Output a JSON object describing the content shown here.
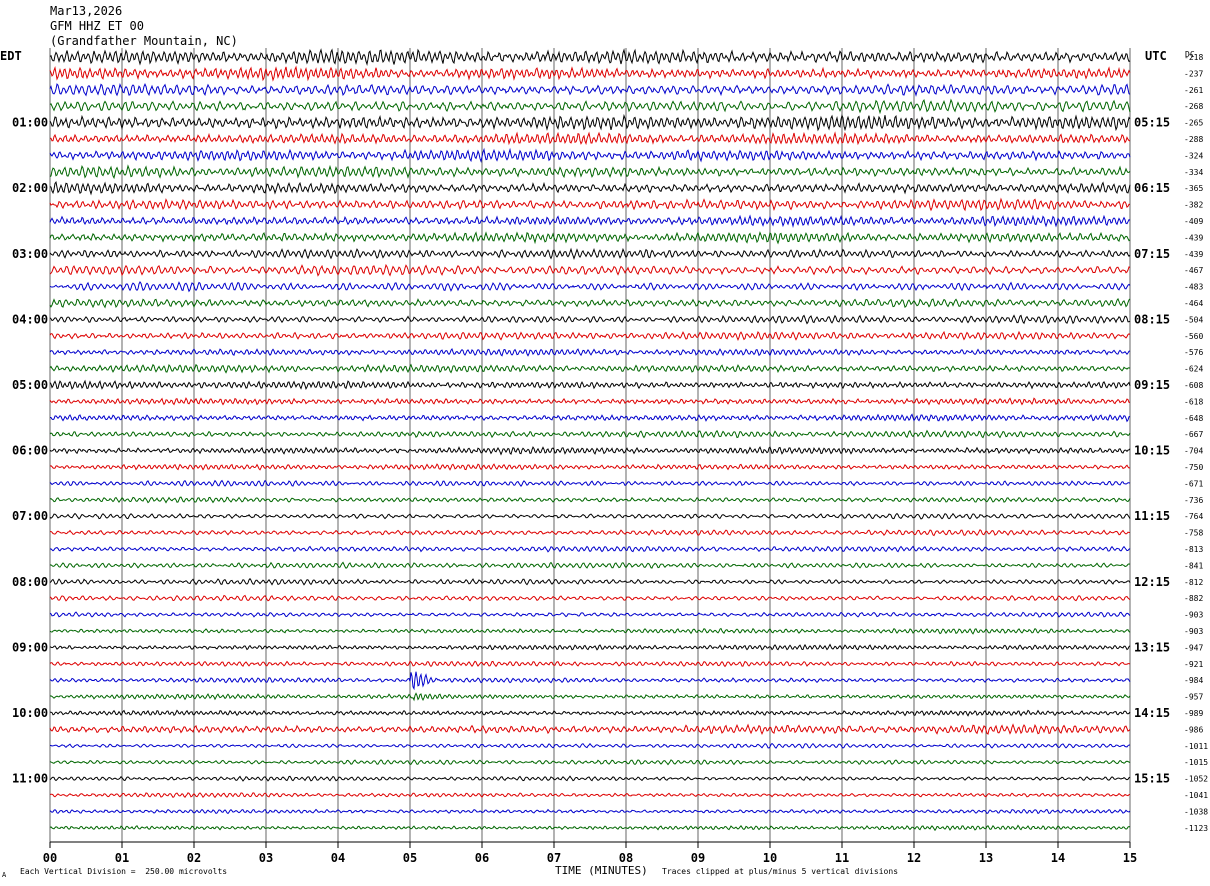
{
  "header": {
    "date": "Mar13,2026",
    "station": "GFM HHZ ET 00",
    "location": "(Grandfather Mountain, NC)"
  },
  "labels": {
    "left_zone": "EDT",
    "right_zone": "UTC",
    "dc_header": "DC",
    "corner_mark": "A",
    "scale_note": "Each Vertical Division =  250.00 microvolts",
    "clip_note": "Traces clipped at plus/minus 5 vertical divisions"
  },
  "colors": {
    "traces": [
      "#000000",
      "#dd0000",
      "#0000cc",
      "#006600"
    ],
    "grid": "#000000"
  },
  "chart_data": {
    "type": "line",
    "title": "",
    "xlabel": "TIME (MINUTES)",
    "ylabel": "",
    "xlim": [
      0,
      15
    ],
    "x_ticks": [
      "00",
      "01",
      "02",
      "03",
      "04",
      "05",
      "06",
      "07",
      "08",
      "09",
      "10",
      "11",
      "12",
      "13",
      "14",
      "15"
    ],
    "rows_per_hour": 4,
    "row_count": 48,
    "left_hour_labels": [
      "01:00",
      "02:00",
      "03:00",
      "04:00",
      "05:00",
      "06:00",
      "07:00",
      "08:00",
      "09:00",
      "10:00",
      "11:00"
    ],
    "right_hour_labels": [
      "05:15",
      "06:15",
      "07:15",
      "08:15",
      "09:15",
      "10:15",
      "11:15",
      "12:15",
      "13:15",
      "14:15",
      "15:15"
    ],
    "dc_offsets": [
      -218,
      -237,
      -261,
      -268,
      -265,
      -288,
      -324,
      -334,
      -365,
      -382,
      -409,
      -439,
      -439,
      -467,
      -483,
      -464,
      -504,
      -560,
      -576,
      -624,
      -608,
      -618,
      -648,
      -667,
      -704,
      -750,
      -671,
      -736,
      -764,
      -758,
      -813,
      -841,
      -812,
      -882,
      -903,
      -903,
      -947,
      -921,
      -984,
      -957,
      -989,
      -986,
      -1011,
      -1015,
      -1052,
      -1041,
      -1038,
      -1123
    ],
    "trace_amplitude_divisions": [
      2.6,
      2.2,
      2.2,
      2.2,
      2.6,
      2.0,
      2.0,
      2.0,
      2.0,
      2.0,
      1.8,
      1.8,
      1.6,
      1.8,
      1.6,
      1.6,
      1.4,
      1.4,
      1.2,
      1.4,
      1.4,
      1.2,
      1.2,
      1.2,
      1.2,
      1.0,
      1.0,
      1.0,
      1.0,
      1.0,
      1.0,
      1.0,
      1.0,
      1.0,
      0.9,
      0.9,
      0.9,
      0.9,
      0.9,
      0.9,
      1.0,
      1.6,
      0.8,
      0.8,
      0.8,
      0.8,
      0.8,
      0.8
    ],
    "events": [
      {
        "row": 38,
        "minute": 5.05,
        "amplitude_divisions": 5
      },
      {
        "row": 39,
        "minute": 5.1,
        "amplitude_divisions": 2
      }
    ],
    "clip_divisions": 5
  }
}
